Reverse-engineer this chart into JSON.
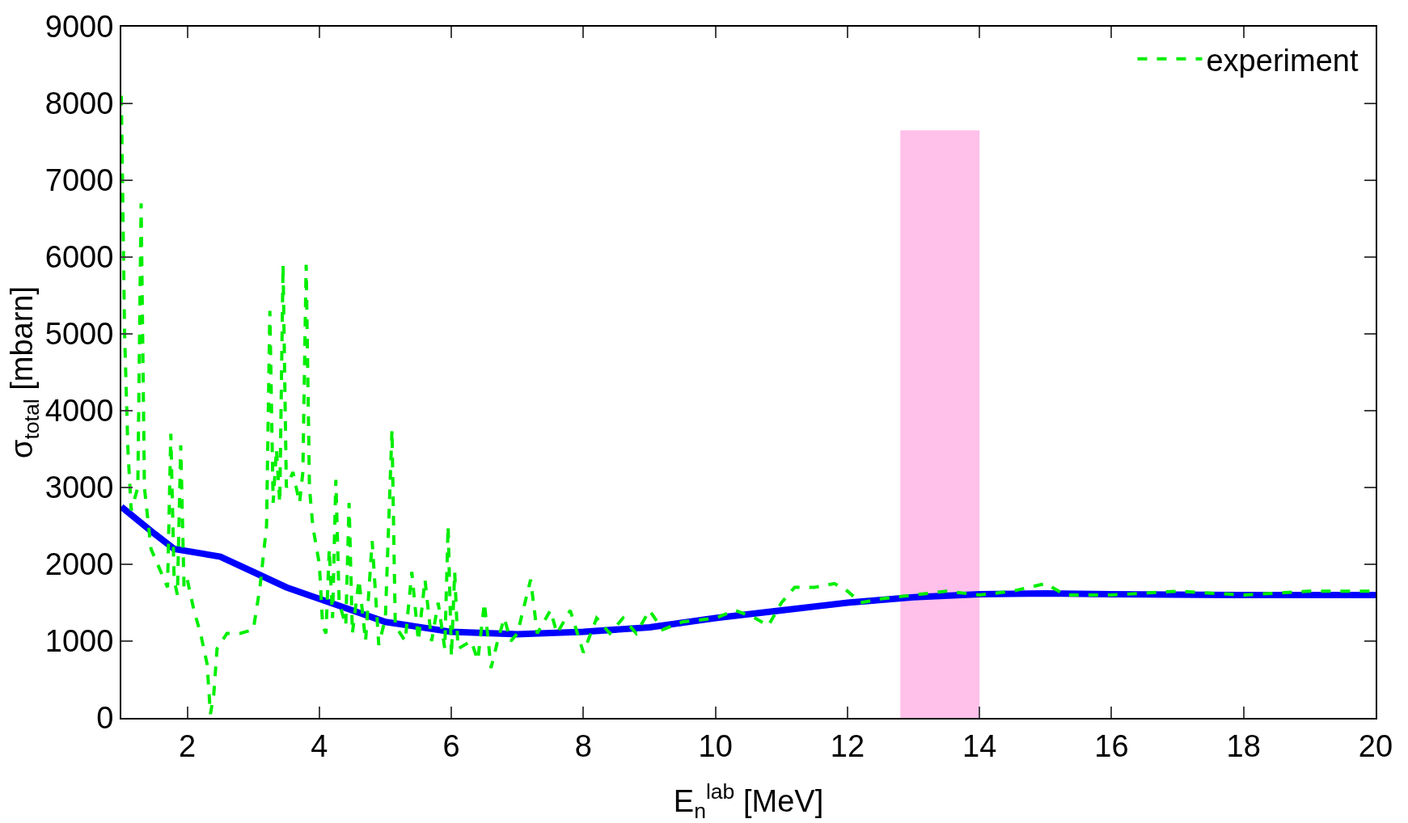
{
  "chart_data": {
    "type": "line",
    "xlabel": "E$_{n}$$^{lab}$ [MeV]",
    "ylabel": "σ$_{total}$ [mbarn]",
    "xlim": [
      1,
      20
    ],
    "xticks": [
      2,
      4,
      6,
      8,
      10,
      12,
      14,
      16,
      18,
      20
    ],
    "ylim": [
      0,
      9000
    ],
    "yticks": [
      0,
      1000,
      2000,
      3000,
      4000,
      5000,
      6000,
      7000,
      8000,
      9000
    ],
    "grid": false,
    "legend": "top right",
    "series": [
      {
        "color": "#0000ff",
        "line_style": "solid",
        "x": [
          1,
          1.5,
          1.8,
          2.5,
          3,
          3.5,
          4,
          4.5,
          5,
          6,
          7,
          8,
          9,
          10,
          11,
          12,
          13,
          14,
          15,
          16,
          18,
          20
        ],
        "values": [
          2750,
          2400,
          2200,
          2100,
          1900,
          1700,
          1550,
          1400,
          1250,
          1120,
          1090,
          1120,
          1180,
          1300,
          1400,
          1500,
          1570,
          1610,
          1620,
          1610,
          1600,
          1600
        ]
      },
      {
        "name": "experiment",
        "color": "#00ee00",
        "line_style": "dashed",
        "x": [
          1.0,
          1.05,
          1.1,
          1.15,
          1.25,
          1.3,
          1.35,
          1.45,
          1.6,
          1.7,
          1.75,
          1.8,
          1.85,
          1.9,
          1.95,
          2.0,
          2.1,
          2.2,
          2.3,
          2.35,
          2.4,
          2.45,
          2.6,
          2.8,
          3.0,
          3.1,
          3.2,
          3.25,
          3.3,
          3.35,
          3.4,
          3.45,
          3.5,
          3.6,
          3.7,
          3.75,
          3.8,
          3.85,
          3.9,
          4.0,
          4.05,
          4.1,
          4.15,
          4.2,
          4.25,
          4.3,
          4.4,
          4.45,
          4.5,
          4.6,
          4.7,
          4.8,
          4.9,
          5.0,
          5.1,
          5.15,
          5.3,
          5.4,
          5.5,
          5.6,
          5.7,
          5.8,
          5.9,
          5.95,
          6.0,
          6.05,
          6.1,
          6.3,
          6.4,
          6.5,
          6.6,
          6.7,
          6.8,
          6.9,
          7.0,
          7.2,
          7.3,
          7.5,
          7.6,
          7.8,
          8.0,
          8.2,
          8.4,
          8.6,
          8.8,
          9.0,
          9.2,
          9.5,
          10.0,
          10.3,
          10.6,
          10.8,
          11.0,
          11.2,
          11.5,
          11.8,
          12.0,
          12.2,
          12.5,
          13.0,
          13.5,
          14.0,
          14.5,
          15.0,
          15.3,
          16.0,
          17.0,
          18.0,
          19.0,
          20.0
        ],
        "values": [
          8100,
          5000,
          3500,
          2700,
          3000,
          6700,
          3000,
          2200,
          1900,
          1700,
          3700,
          1800,
          1600,
          3550,
          1700,
          1800,
          1400,
          1100,
          700,
          50,
          300,
          900,
          1100,
          1100,
          1150,
          1700,
          2500,
          5300,
          2800,
          3500,
          2800,
          5900,
          3000,
          3200,
          2800,
          3200,
          5900,
          3000,
          2500,
          2000,
          1200,
          1100,
          2200,
          1300,
          3100,
          1500,
          1200,
          2800,
          1100,
          1800,
          1000,
          2300,
          950,
          1300,
          3750,
          1200,
          1000,
          1900,
          1000,
          1800,
          1000,
          1500,
          900,
          2500,
          800,
          1900,
          900,
          1000,
          750,
          1500,
          650,
          1000,
          1300,
          1000,
          1100,
          1800,
          1100,
          1400,
          1100,
          1400,
          850,
          1300,
          1100,
          1300,
          1100,
          1400,
          1150,
          1250,
          1300,
          1400,
          1300,
          1200,
          1500,
          1700,
          1700,
          1750,
          1650,
          1500,
          1550,
          1600,
          1650,
          1600,
          1650,
          1750,
          1600,
          1600,
          1650,
          1600,
          1650,
          1650
        ]
      }
    ],
    "bands": [
      {
        "axis": "x",
        "from": 12.8,
        "to": 14,
        "color": "#ffc0ea"
      }
    ]
  }
}
